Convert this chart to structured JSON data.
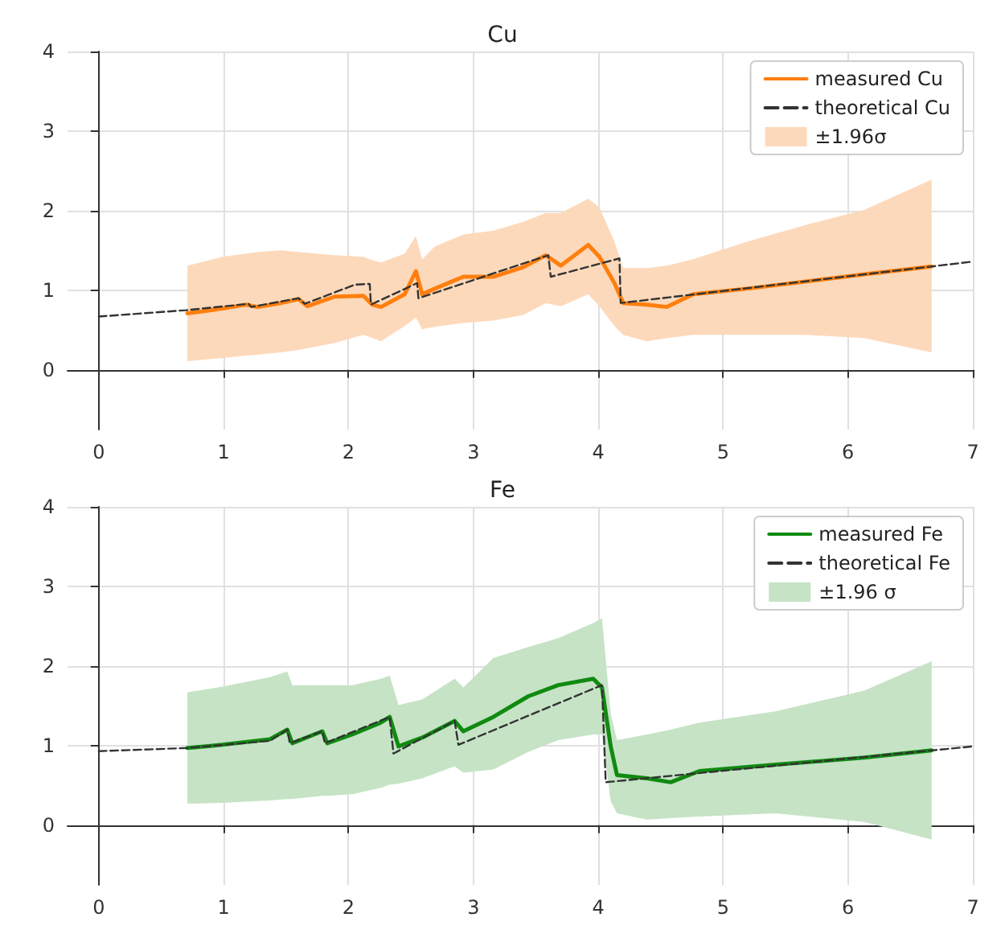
{
  "chart_data": [
    {
      "type": "line",
      "title": "Cu",
      "xlim": [
        -0.25,
        7
      ],
      "xticks": [
        0,
        1,
        2,
        3,
        4,
        5,
        6,
        7
      ],
      "ylim": [
        -0.75,
        4
      ],
      "yticks": [
        0,
        1,
        2,
        3,
        4
      ],
      "grid": true,
      "legend": "top right",
      "marker": "none",
      "series": [
        {
          "name": "measured Cu",
          "color": "#ff7f0e",
          "line_style": "solid",
          "x": [
            0.71,
            0.99,
            1.18,
            1.27,
            1.46,
            1.6,
            1.67,
            1.89,
            2.12,
            2.19,
            2.26,
            2.45,
            2.54,
            2.59,
            2.69,
            2.92,
            3.16,
            3.4,
            3.58,
            3.7,
            3.92,
            4.01,
            4.13,
            4.2,
            4.39,
            4.55,
            4.76,
            5.19,
            5.66,
            6.13,
            6.67
          ],
          "values": [
            0.71,
            0.77,
            0.82,
            0.79,
            0.84,
            0.89,
            0.8,
            0.92,
            0.93,
            0.82,
            0.79,
            0.95,
            1.24,
            0.95,
            1.02,
            1.17,
            1.17,
            1.29,
            1.44,
            1.31,
            1.57,
            1.42,
            1.09,
            0.84,
            0.82,
            0.79,
            0.95,
            1.02,
            1.11,
            1.2,
            1.3
          ],
          "lower": [
            0.11,
            0.15,
            0.18,
            0.19,
            0.22,
            0.25,
            0.27,
            0.34,
            0.44,
            0.4,
            0.36,
            0.55,
            0.66,
            0.51,
            0.54,
            0.59,
            0.62,
            0.69,
            0.84,
            0.8,
            0.95,
            0.8,
            0.55,
            0.44,
            0.36,
            0.4,
            0.44,
            0.44,
            0.44,
            0.4,
            0.22
          ],
          "upper": [
            1.31,
            1.42,
            1.46,
            1.48,
            1.5,
            1.48,
            1.47,
            1.44,
            1.42,
            1.38,
            1.35,
            1.46,
            1.68,
            1.39,
            1.55,
            1.7,
            1.75,
            1.86,
            1.97,
            1.97,
            2.15,
            2.04,
            1.61,
            1.28,
            1.28,
            1.31,
            1.39,
            1.61,
            1.82,
            2.01,
            2.39
          ]
        },
        {
          "name": "theoretical Cu",
          "color": "#333333",
          "line_style": "dashed",
          "x": [
            0,
            0.7,
            1.2,
            1.22,
            1.6,
            1.65,
            2.05,
            2.17,
            2.18,
            2.55,
            2.56,
            3.6,
            3.62,
            4.17,
            4.18,
            7
          ],
          "values": [
            0.67,
            0.75,
            0.83,
            0.79,
            0.9,
            0.83,
            1.07,
            1.08,
            0.82,
            1.09,
            0.9,
            1.44,
            1.17,
            1.4,
            0.84,
            1.36
          ]
        },
        {
          "type": "area",
          "name": "±1.96σ",
          "color": "#fdd9bb"
        }
      ]
    },
    {
      "type": "line",
      "title": "Fe",
      "xlim": [
        -0.25,
        7
      ],
      "xticks": [
        0,
        1,
        2,
        3,
        4,
        5,
        6,
        7
      ],
      "ylim": [
        -0.75,
        4
      ],
      "yticks": [
        0,
        1,
        2,
        3,
        4
      ],
      "grid": true,
      "legend": "top right",
      "marker": "none",
      "series": [
        {
          "name": "measured Fe",
          "color": "#108a10",
          "line_style": "solid",
          "x": [
            0.71,
            0.99,
            1.37,
            1.51,
            1.55,
            1.79,
            1.83,
            2.03,
            2.26,
            2.33,
            2.4,
            2.59,
            2.85,
            2.92,
            3.16,
            3.44,
            3.68,
            3.96,
            4.03,
            4.1,
            4.15,
            4.39,
            4.58,
            4.81,
            5.42,
            6.13,
            6.67
          ],
          "values": [
            0.97,
            1.01,
            1.08,
            1.2,
            1.03,
            1.18,
            1.03,
            1.14,
            1.29,
            1.36,
            0.99,
            1.1,
            1.31,
            1.18,
            1.36,
            1.62,
            1.76,
            1.84,
            1.73,
            0.99,
            0.63,
            0.59,
            0.54,
            0.68,
            0.76,
            0.85,
            0.94
          ],
          "lower": [
            0.27,
            0.28,
            0.31,
            0.33,
            0.33,
            0.37,
            0.37,
            0.39,
            0.47,
            0.51,
            0.52,
            0.59,
            0.74,
            0.66,
            0.7,
            0.92,
            1.07,
            1.14,
            1.14,
            0.3,
            0.15,
            0.07,
            0.09,
            0.11,
            0.15,
            0.04,
            -0.18
          ],
          "upper": [
            1.67,
            1.74,
            1.86,
            1.93,
            1.76,
            1.76,
            1.76,
            1.76,
            1.84,
            1.88,
            1.51,
            1.58,
            1.84,
            1.73,
            2.1,
            2.24,
            2.35,
            2.54,
            2.6,
            1.4,
            1.07,
            1.14,
            1.2,
            1.29,
            1.43,
            1.69,
            2.06
          ]
        },
        {
          "name": "theoretical Fe",
          "color": "#333333",
          "line_style": "dashed",
          "x": [
            0,
            0.71,
            1.37,
            1.51,
            1.53,
            1.79,
            1.81,
            2.33,
            2.36,
            2.85,
            2.88,
            4.03,
            4.06,
            7
          ],
          "values": [
            0.93,
            0.97,
            1.06,
            1.2,
            1.03,
            1.18,
            1.03,
            1.36,
            0.9,
            1.31,
            1.01,
            1.76,
            0.54,
            0.99
          ]
        },
        {
          "type": "area",
          "name": "±1.96 σ",
          "color": "#c6e3c6"
        }
      ]
    }
  ]
}
